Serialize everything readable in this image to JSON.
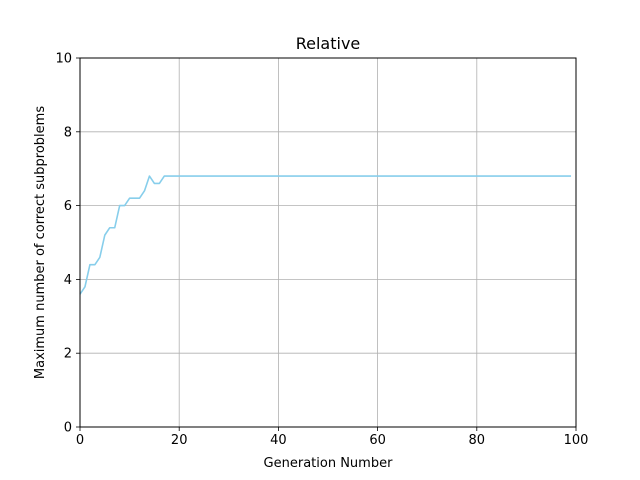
{
  "chart_data": {
    "type": "line",
    "title": "Relative",
    "xlabel": "Generation Number",
    "ylabel": "Maximum number of correct subproblems",
    "xlim": [
      0,
      100
    ],
    "ylim": [
      0,
      10
    ],
    "xticks": [
      0,
      20,
      40,
      60,
      80,
      100
    ],
    "yticks": [
      0,
      2,
      4,
      6,
      8,
      10
    ],
    "xtick_labels": [
      "0",
      "20",
      "40",
      "60",
      "80",
      "100"
    ],
    "ytick_labels": [
      "0",
      "2",
      "4",
      "6",
      "8",
      "10"
    ],
    "grid": true,
    "series": [
      {
        "color": "#87ceeb",
        "x": [
          0,
          1,
          2,
          3,
          4,
          5,
          6,
          7,
          8,
          9,
          10,
          11,
          12,
          13,
          14,
          15,
          16,
          17,
          18,
          19,
          20,
          99
        ],
        "y": [
          3.6,
          3.8,
          4.4,
          4.4,
          4.6,
          5.2,
          5.4,
          5.4,
          6.0,
          6.0,
          6.2,
          6.2,
          6.2,
          6.4,
          6.8,
          6.6,
          6.6,
          6.8,
          6.8,
          6.8,
          6.8,
          6.8
        ]
      }
    ]
  }
}
